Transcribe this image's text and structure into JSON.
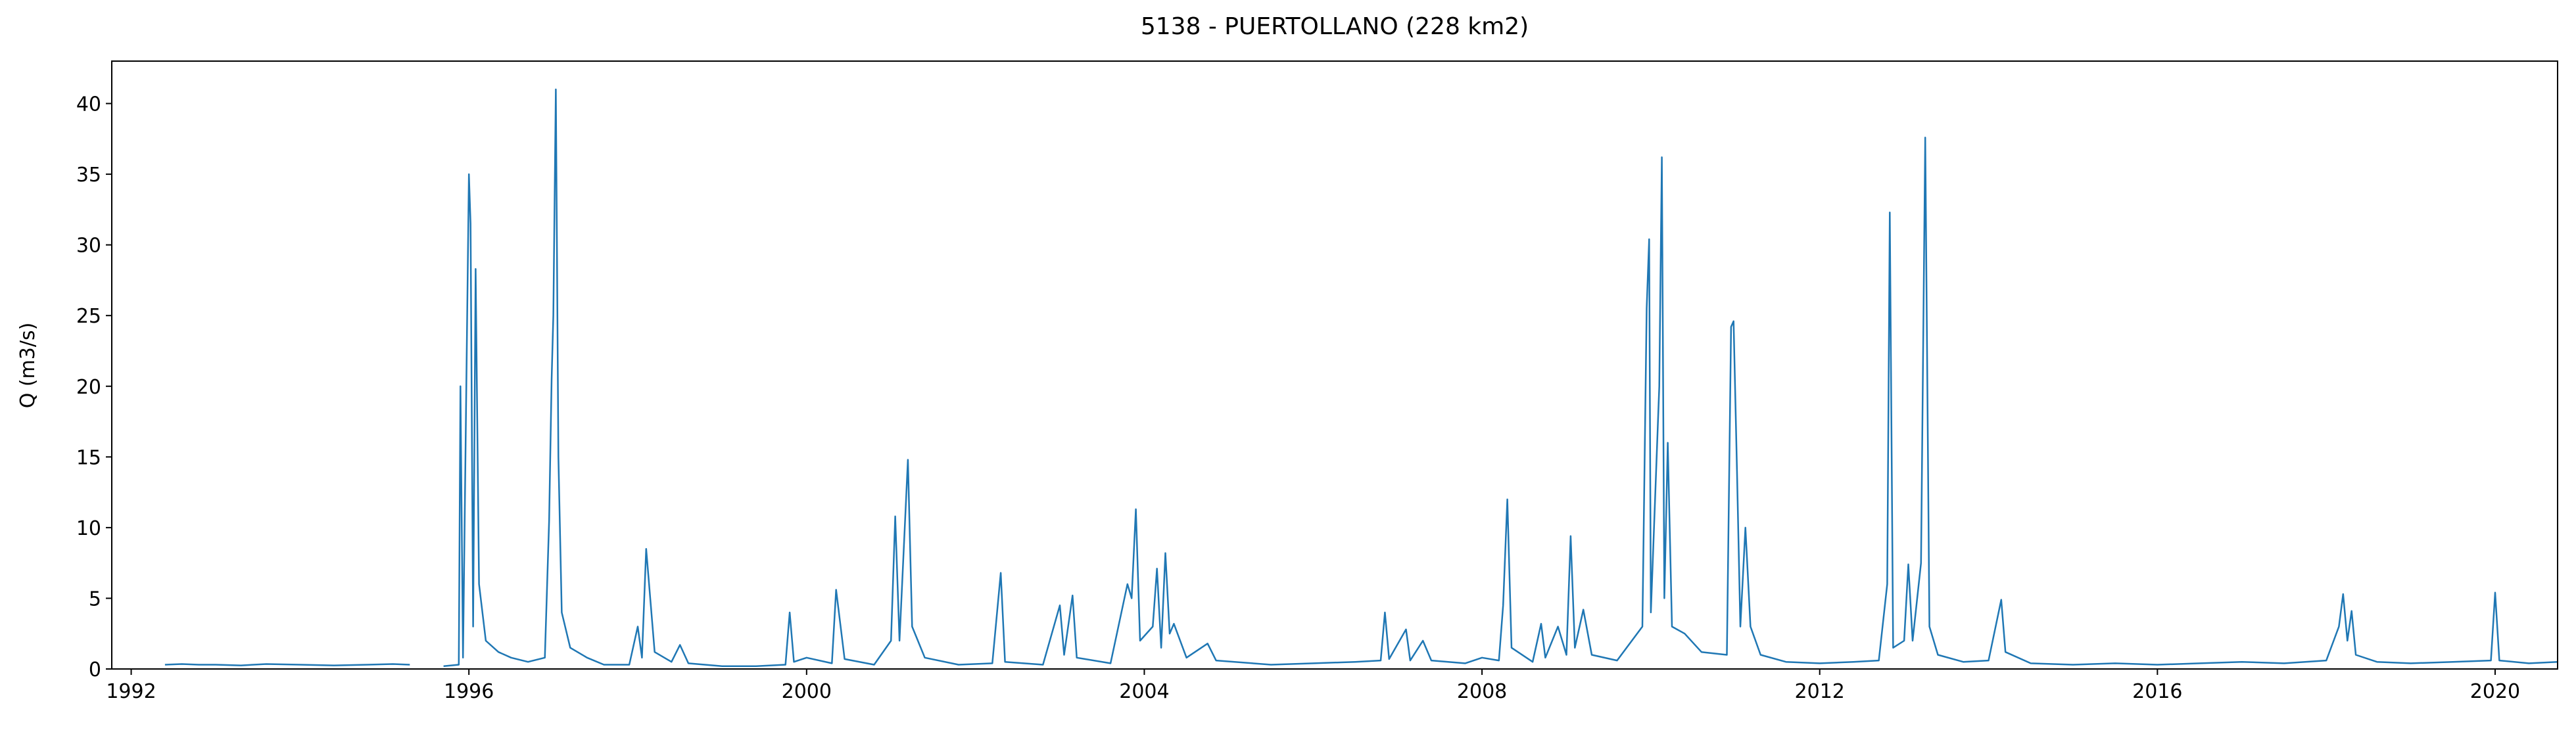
{
  "chart_data": {
    "type": "line",
    "title": "5138 - PUERTOLLANO (228 km2)",
    "y_label": "Q (m3/s)",
    "color": "#1f77b4",
    "x": [
      1992.4,
      1992.6,
      1992.8,
      1993.0,
      1993.3,
      1993.6,
      1994.0,
      1994.4,
      1994.8,
      1995.1,
      1995.3,
      1995.5,
      1995.7,
      1995.88,
      1995.9,
      1995.93,
      1996.0,
      1996.02,
      1996.05,
      1996.08,
      1996.12,
      1996.2,
      1996.35,
      1996.5,
      1996.7,
      1996.9,
      1996.95,
      1996.98,
      1997.0,
      1997.03,
      1997.06,
      1997.1,
      1997.2,
      1997.4,
      1997.6,
      1997.9,
      1998.0,
      1998.05,
      1998.1,
      1998.2,
      1998.4,
      1998.5,
      1998.6,
      1999.0,
      1999.4,
      1999.75,
      1999.8,
      1999.85,
      2000.0,
      2000.3,
      2000.35,
      2000.45,
      2000.8,
      2001.0,
      2001.05,
      2001.1,
      2001.2,
      2001.25,
      2001.4,
      2001.8,
      2002.2,
      2002.3,
      2002.35,
      2002.8,
      2003.0,
      2003.05,
      2003.15,
      2003.2,
      2003.6,
      2003.8,
      2003.85,
      2003.9,
      2003.95,
      2004.1,
      2004.15,
      2004.2,
      2004.25,
      2004.3,
      2004.35,
      2004.5,
      2004.75,
      2004.85,
      2005.5,
      2006.0,
      2006.5,
      2006.8,
      2006.85,
      2006.9,
      2007.1,
      2007.15,
      2007.3,
      2007.4,
      2007.8,
      2008.0,
      2008.2,
      2008.25,
      2008.3,
      2008.35,
      2008.6,
      2008.7,
      2008.75,
      2008.9,
      2009.0,
      2009.05,
      2009.1,
      2009.2,
      2009.3,
      2009.6,
      2009.9,
      2009.95,
      2009.98,
      2010.0,
      2010.05,
      2010.1,
      2010.13,
      2010.16,
      2010.2,
      2010.25,
      2010.4,
      2010.6,
      2010.9,
      2010.95,
      2010.98,
      2011.02,
      2011.06,
      2011.12,
      2011.18,
      2011.3,
      2011.6,
      2012.0,
      2012.4,
      2012.7,
      2012.8,
      2012.83,
      2012.87,
      2013.0,
      2013.05,
      2013.1,
      2013.2,
      2013.25,
      2013.3,
      2013.4,
      2013.7,
      2014.0,
      2014.15,
      2014.2,
      2014.5,
      2015.0,
      2015.5,
      2016.0,
      2016.5,
      2017.0,
      2017.5,
      2018.0,
      2018.15,
      2018.2,
      2018.25,
      2018.3,
      2018.35,
      2018.6,
      2019.0,
      2019.5,
      2019.95,
      2020.0,
      2020.05,
      2020.4,
      2020.74
    ],
    "values": [
      0.3,
      0.35,
      0.3,
      0.3,
      0.25,
      0.35,
      0.3,
      0.25,
      0.3,
      0.35,
      0.3,
      null,
      0.2,
      0.3,
      20.0,
      0.8,
      35.0,
      31.5,
      3,
      28.3,
      6,
      2,
      1.2,
      0.8,
      0.5,
      0.8,
      10.5,
      20.5,
      25.0,
      41.0,
      15,
      4,
      1.5,
      0.8,
      0.3,
      0.3,
      3,
      0.8,
      8.5,
      1.2,
      0.5,
      1.7,
      0.4,
      0.2,
      0.2,
      0.3,
      4.0,
      0.5,
      0.8,
      0.4,
      5.6,
      0.7,
      0.3,
      2,
      10.8,
      2,
      14.8,
      3,
      0.8,
      0.3,
      0.4,
      6.8,
      0.5,
      0.3,
      4.5,
      1,
      5.2,
      0.8,
      0.4,
      6.0,
      5.0,
      11.3,
      2,
      3,
      7.1,
      1.5,
      8.2,
      2.5,
      3.2,
      0.8,
      1.8,
      0.6,
      0.3,
      0.4,
      0.5,
      0.6,
      4.0,
      0.7,
      2.8,
      0.6,
      2.0,
      0.6,
      0.4,
      0.8,
      0.6,
      4.5,
      12.0,
      1.5,
      0.5,
      3.2,
      0.8,
      3.0,
      1,
      9.4,
      1.5,
      4.2,
      1.0,
      0.6,
      3,
      25.5,
      30.4,
      4,
      12,
      20,
      36.2,
      5,
      16,
      3,
      2.5,
      1.2,
      1.0,
      24.2,
      24.6,
      14,
      3,
      10.0,
      3,
      1,
      0.5,
      0.4,
      0.5,
      0.6,
      6,
      32.3,
      1.5,
      2,
      7.4,
      2,
      7.5,
      37.6,
      3,
      1,
      0.5,
      0.6,
      4.9,
      1.2,
      0.4,
      0.3,
      0.4,
      0.3,
      0.4,
      0.5,
      0.4,
      0.6,
      3,
      5.3,
      2,
      4.1,
      1,
      0.5,
      0.4,
      0.5,
      0.6,
      5.4,
      0.6,
      0.4,
      0.5
    ],
    "xlim": [
      1991.77,
      2020.74
    ],
    "xticks": [
      1992,
      1996,
      2000,
      2004,
      2008,
      2012,
      2016,
      2020
    ],
    "ylim": [
      0,
      43
    ],
    "yticks": [
      0,
      5,
      10,
      15,
      20,
      25,
      30,
      35,
      40
    ]
  }
}
